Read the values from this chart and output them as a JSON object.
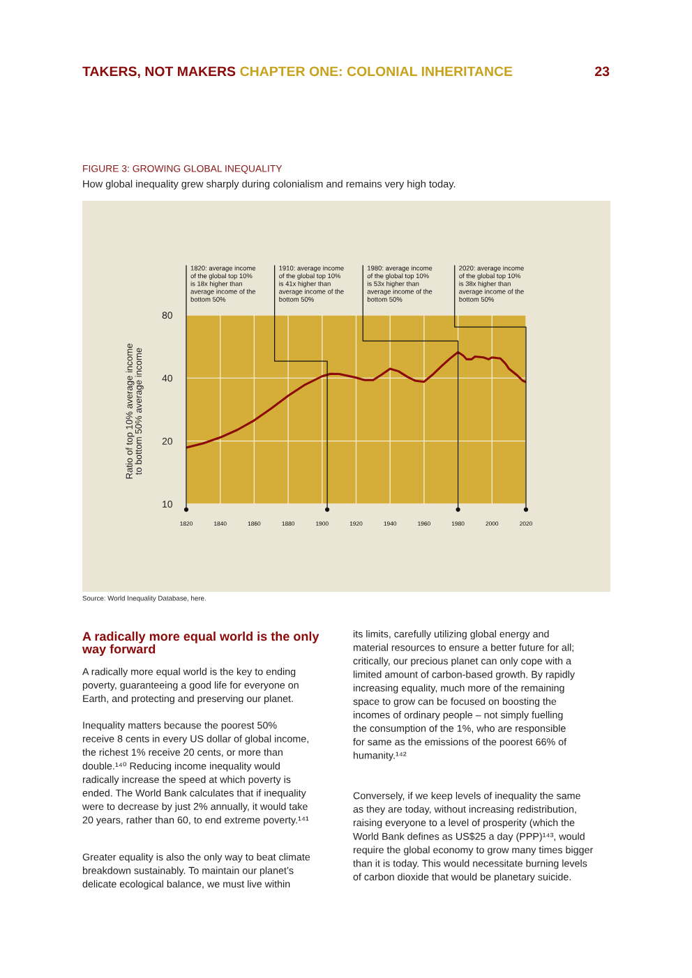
{
  "chart_data": {
    "type": "line",
    "title": "FIGURE 3: GROWING GLOBAL INEQUALITY",
    "subtitle": "How global inequality grew sharply during colonialism and remains very high today.",
    "ylabel": "Ratio of top 10% average income\nto bottom 50% average income",
    "x": [
      1820,
      1830,
      1840,
      1850,
      1860,
      1870,
      1880,
      1890,
      1900,
      1905,
      1910,
      1920,
      1925,
      1930,
      1935,
      1940,
      1945,
      1950,
      1955,
      1960,
      1965,
      1970,
      1975,
      1980,
      1983,
      1985,
      1988,
      1990,
      1995,
      1998,
      2000,
      2005,
      2008,
      2010,
      2015,
      2018,
      2020
    ],
    "series": [
      {
        "color": "#8b0a0a",
        "values": [
          18.6,
          19.5,
          20.8,
          22.6,
          25.1,
          28.6,
          32.9,
          37.2,
          40.8,
          41.9,
          41.8,
          40.2,
          39.1,
          39.1,
          41.5,
          44.3,
          43.1,
          40.6,
          38.8,
          38.4,
          41.5,
          45.4,
          49.4,
          53.2,
          51.3,
          49.2,
          49.2,
          50.7,
          50.2,
          49.2,
          50.2,
          49.6,
          46.8,
          44.3,
          41.1,
          38.9,
          38.3
        ]
      }
    ],
    "xlim": [
      1820,
      2020
    ],
    "xticks": [
      1820,
      1840,
      1860,
      1880,
      1900,
      1920,
      1940,
      1960,
      1980,
      2000,
      2020
    ],
    "ylim": [
      10,
      80
    ],
    "yticks": [
      10,
      20,
      40,
      80
    ],
    "log": true,
    "grid": true,
    "annotations": [
      "TAKERS, NOT MAKERS",
      "CHAPTER ONE: COLONIAL INHERITANCE",
      "23",
      "Source: World Inequality Database, here.",
      "A radically more equal world is the only\nway forward",
      "A radically more equal world is the key to ending\npoverty, guaranteeing a good life for everyone on\nEarth, and protecting and preserving our planet.",
      "Inequality matters because the poorest 50%\nreceive 8 cents in every US dollar of global income,\nthe richest 1% receive 20 cents, or more than\ndouble.¹⁴⁰ Reducing income inequality would\nradically increase the speed at which poverty is\nended. The World Bank calculates that if inequality\nwere to decrease by just 2% annually, it would take\n20 years, rather than 60, to end extreme poverty.¹⁴¹",
      "Greater equality is also the only way to beat climate\nbreakdown sustainably. To maintain our planet’s\ndelicate ecological balance, we must live within",
      "its limits, carefully utilizing global energy and\nmaterial resources to ensure a better future for all;\ncritically, our precious planet can only cope with a\nlimited amount of carbon-based growth. By rapidly\nincreasing equality, much more of the remaining\nspace to grow can be focused on boosting the\nincomes of ordinary people – not simply fuelling\nthe consumption of the 1%, who are responsible\nfor same as the emissions of the poorest 66% of\nhumanity.¹⁴²",
      "Conversely, if we keep levels of inequality the same\nas they are today, without increasing redistribution,\nraising everyone to a level of prosperity (which the\nWorld Bank defines as US$25 a day (PPP)¹⁴³, would\nrequire the global economy to grow many times bigger\nthan it is today. This would necessitate burning levels\nof carbon dioxide that would be planetary suicide.",
      "1820: average income\nof the global top 10%\nis 18x higher than\naverage income of the\nbottom 50%",
      "1910: average income\nof the global top 10%\nis 41x higher than\naverage income of the\nbottom 50%",
      "1980: average income\nof the global top 10%\nis 53x higher than\naverage income of the\nbottom 50%",
      "2020: average income\nof the global top 10%\nis 38x higher than\naverage income of the\nbottom 50%"
    ]
  }
}
